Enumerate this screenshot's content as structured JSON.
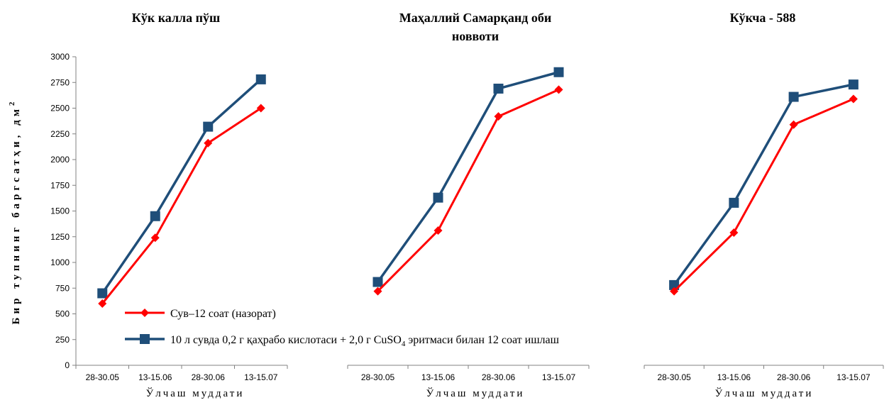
{
  "chart_data": {
    "type": "line",
    "ylabel": "Бир тупнинг баргсатҳи, дм",
    "ylabel_sup": "2",
    "ylim": [
      0,
      3000
    ],
    "yticks": [
      0,
      250,
      500,
      750,
      1000,
      1250,
      1500,
      1750,
      2000,
      2250,
      2500,
      2750,
      3000
    ],
    "categories": [
      "28-30.05",
      "13-15.06",
      "28-30.06",
      "13-15.07"
    ],
    "xlabel": "Ўлчаш муддати",
    "colors": [
      "#ff0000",
      "#1f4e79"
    ],
    "legend": {
      "position": "bottom",
      "entries": [
        {
          "label": "Сув–12 соат (назорат)",
          "color": "#ff0000",
          "marker": "diamond"
        },
        {
          "label_pre": "10 л сувда 0,2 г қаҳрабо кислотаси + 2,0 г CuSO",
          "label_sub": "4",
          "label_post": " эритмаси билан 12 соат ишлаш",
          "color": "#1f4e79",
          "marker": "square"
        }
      ]
    },
    "panels": [
      {
        "title_lines": [
          "Кўк калла пўш"
        ],
        "series": [
          {
            "name": "Сув–12 соат (назорат)",
            "values": [
              600,
              1240,
              2160,
              2500
            ]
          },
          {
            "name": "10 л сувда 0,2 г қаҳрабо кислотаси + 2,0 г CuSO4 эритмаси билан 12 соат ишлаш",
            "values": [
              700,
              1450,
              2320,
              2780
            ]
          }
        ]
      },
      {
        "title_lines": [
          "Маҳаллий Самарқанд оби",
          "новвоти"
        ],
        "series": [
          {
            "name": "Сув–12 соат (назорат)",
            "values": [
              720,
              1310,
              2420,
              2680
            ]
          },
          {
            "name": "10 л сувда 0,2 г қаҳрабо кислотаси + 2,0 г CuSO4 эритмаси билан 12 соат ишлаш",
            "values": [
              810,
              1630,
              2690,
              2850
            ]
          }
        ]
      },
      {
        "title_lines": [
          "Кўкча - 588"
        ],
        "series": [
          {
            "name": "Сув–12 соат (назорат)",
            "values": [
              720,
              1290,
              2340,
              2590
            ]
          },
          {
            "name": "10 л сувда 0,2 г қаҳрабо кислотаси + 2,0 г CuSO4 эритмаси билан 12 соат ишлаш",
            "values": [
              780,
              1580,
              2610,
              2730
            ]
          }
        ]
      }
    ]
  }
}
